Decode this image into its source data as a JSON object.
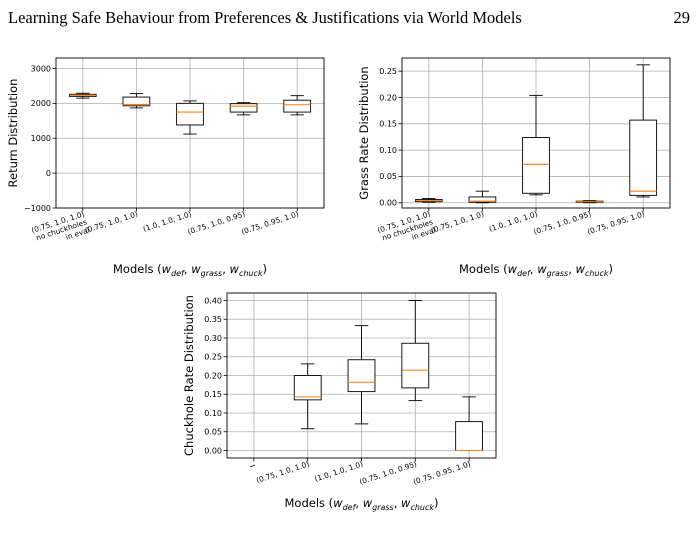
{
  "header": {
    "title": "Learning Safe Behaviour from Preferences & Justifications via World Models",
    "page_number": "29"
  },
  "colors": {
    "median": "#ff7f0e",
    "box": "#000000",
    "grid": "#b0b0b0"
  },
  "chart_data": [
    {
      "type": "box",
      "ylabel": "Return Distribution",
      "xlabel_prefix": "Models (",
      "xlabel_vars": [
        "w",
        "def",
        ", ",
        "w",
        "grass",
        ", ",
        "w",
        "chuck",
        ")"
      ],
      "ylim": [
        -1000,
        3300
      ],
      "yticks": [
        -1000,
        0,
        1000,
        2000,
        3000
      ],
      "ytick_labels": [
        "−1000",
        "0",
        "1000",
        "2000",
        "3000"
      ],
      "grid": true,
      "categories": [
        "(0.75, 1.0, 1.0)\nno chuckholes\nin eval",
        "(0.75, 1.0, 1.0)",
        "(1.0, 1.0, 1.0)",
        "(0.75, 1.0, 0.95)",
        "(0.75, 0.95, 1.0)"
      ],
      "boxes": [
        {
          "whislo": 2150,
          "q1": 2200,
          "med": 2230,
          "q3": 2260,
          "whishi": 2290
        },
        {
          "whislo": 1870,
          "q1": 1930,
          "med": 1970,
          "q3": 2180,
          "whishi": 2280
        },
        {
          "whislo": 1120,
          "q1": 1380,
          "med": 1750,
          "q3": 2000,
          "whishi": 2070
        },
        {
          "whislo": 1670,
          "q1": 1750,
          "med": 1920,
          "q3": 1990,
          "whishi": 2020
        },
        {
          "whislo": 1670,
          "q1": 1750,
          "med": 1960,
          "q3": 2090,
          "whishi": 2220
        }
      ]
    },
    {
      "type": "box",
      "ylabel": "Grass Rate Distribution",
      "xlabel_prefix": "Models (",
      "ylim": [
        -0.01,
        0.275
      ],
      "yticks": [
        0.0,
        0.05,
        0.1,
        0.15,
        0.2,
        0.25
      ],
      "ytick_labels": [
        "0.00",
        "0.05",
        "0.10",
        "0.15",
        "0.20",
        "0.25"
      ],
      "grid": true,
      "categories": [
        "(0.75, 1.0, 1.0)\nno chuckholes\nin eval",
        "(0.75, 1.0, 1.0)",
        "(1.0, 1.0, 1.0)",
        "(0.75, 1.0, 0.95)",
        "(0.75, 0.95, 1.0)"
      ],
      "boxes": [
        {
          "whislo": 0.001,
          "q1": 0.002,
          "med": 0.004,
          "q3": 0.006,
          "whishi": 0.008
        },
        {
          "whislo": 0.0,
          "q1": 0.001,
          "med": 0.003,
          "q3": 0.011,
          "whishi": 0.022
        },
        {
          "whislo": 0.015,
          "q1": 0.018,
          "med": 0.073,
          "q3": 0.124,
          "whishi": 0.204
        },
        {
          "whislo": 0.0,
          "q1": 0.001,
          "med": 0.002,
          "q3": 0.003,
          "whishi": 0.004
        },
        {
          "whislo": 0.011,
          "q1": 0.014,
          "med": 0.022,
          "q3": 0.157,
          "whishi": 0.262
        }
      ]
    },
    {
      "type": "box",
      "ylabel": "Chuckhole Rate Distribution",
      "xlabel_prefix": "Models (",
      "ylim": [
        -0.02,
        0.42
      ],
      "yticks": [
        0.0,
        0.05,
        0.1,
        0.15,
        0.2,
        0.25,
        0.3,
        0.35,
        0.4
      ],
      "ytick_labels": [
        "0.00",
        "0.05",
        "0.10",
        "0.15",
        "0.20",
        "0.25",
        "0.30",
        "0.35",
        "0.40"
      ],
      "grid": true,
      "categories": [
        "",
        "(0.75, 1.0, 1.0)",
        "(1.0, 1.0, 1.0)",
        "(0.75, 1.0, 0.95)",
        "(0.75, 0.95, 1.0)"
      ],
      "boxes": [
        null,
        {
          "whislo": 0.058,
          "q1": 0.135,
          "med": 0.143,
          "q3": 0.2,
          "whishi": 0.231
        },
        {
          "whislo": 0.071,
          "q1": 0.157,
          "med": 0.182,
          "q3": 0.242,
          "whishi": 0.333
        },
        {
          "whislo": 0.133,
          "q1": 0.167,
          "med": 0.214,
          "q3": 0.286,
          "whishi": 0.4
        },
        {
          "whislo": 0.0,
          "q1": 0.0,
          "med": 0.0,
          "q3": 0.077,
          "whishi": 0.143
        }
      ]
    }
  ]
}
